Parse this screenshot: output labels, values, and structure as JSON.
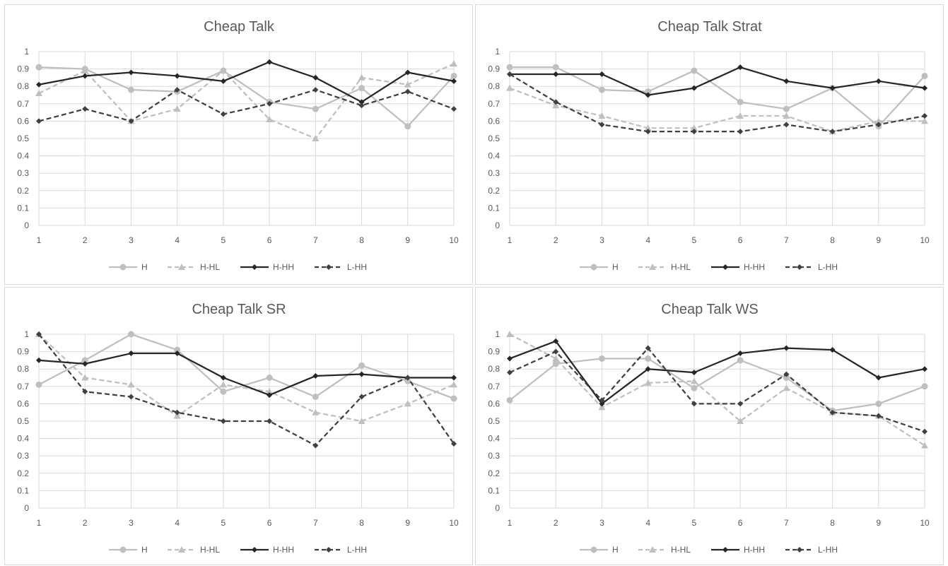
{
  "chart_data": [
    {
      "type": "line",
      "title": "Cheap Talk",
      "x": [
        1,
        2,
        3,
        4,
        5,
        6,
        7,
        8,
        9,
        10
      ],
      "ylim": [
        0,
        1
      ],
      "yticks": [
        "0",
        "0.1",
        "0.2",
        "0.3",
        "0.4",
        "0.5",
        "0.6",
        "0.7",
        "0.8",
        "0.9",
        "1"
      ],
      "grid": true,
      "legend_position": "bottom",
      "series": [
        {
          "name": "H",
          "values": [
            0.91,
            0.9,
            0.78,
            0.77,
            0.89,
            0.71,
            0.67,
            0.79,
            0.57,
            0.86
          ],
          "color": "#bfbfbf",
          "dash": "solid",
          "marker": "circle"
        },
        {
          "name": "H-HL",
          "values": [
            0.76,
            0.89,
            0.6,
            0.67,
            0.89,
            0.61,
            0.5,
            0.85,
            0.81,
            0.93
          ],
          "color": "#bfbfbf",
          "dash": "dashed",
          "marker": "triangle"
        },
        {
          "name": "H-HH",
          "values": [
            0.81,
            0.86,
            0.88,
            0.86,
            0.83,
            0.94,
            0.85,
            0.71,
            0.88,
            0.83
          ],
          "color": "#262626",
          "dash": "solid",
          "marker": "diamond"
        },
        {
          "name": "L-HH",
          "values": [
            0.6,
            0.67,
            0.6,
            0.78,
            0.64,
            0.7,
            0.78,
            0.69,
            0.77,
            0.67
          ],
          "color": "#404040",
          "dash": "dashed",
          "marker": "diamond"
        }
      ]
    },
    {
      "type": "line",
      "title": "Cheap Talk Strat",
      "x": [
        1,
        2,
        3,
        4,
        5,
        6,
        7,
        8,
        9,
        10
      ],
      "ylim": [
        0,
        1
      ],
      "yticks": [
        "0",
        "0.1",
        "0.2",
        "0.3",
        "0.4",
        "0.5",
        "0.6",
        "0.7",
        "0.8",
        "0.9",
        "1"
      ],
      "grid": true,
      "legend_position": "bottom",
      "series": [
        {
          "name": "H",
          "values": [
            0.91,
            0.91,
            0.78,
            0.77,
            0.89,
            0.71,
            0.67,
            0.79,
            0.57,
            0.86
          ],
          "color": "#bfbfbf",
          "dash": "solid",
          "marker": "circle"
        },
        {
          "name": "H-HL",
          "values": [
            0.79,
            0.69,
            0.63,
            0.56,
            0.56,
            0.63,
            0.63,
            0.54,
            0.6,
            0.6
          ],
          "color": "#bfbfbf",
          "dash": "dashed",
          "marker": "triangle"
        },
        {
          "name": "H-HH",
          "values": [
            0.87,
            0.87,
            0.87,
            0.75,
            0.79,
            0.91,
            0.83,
            0.79,
            0.83,
            0.79
          ],
          "color": "#262626",
          "dash": "solid",
          "marker": "diamond"
        },
        {
          "name": "L-HH",
          "values": [
            0.87,
            0.71,
            0.58,
            0.54,
            0.54,
            0.54,
            0.58,
            0.54,
            0.58,
            0.63
          ],
          "color": "#404040",
          "dash": "dashed",
          "marker": "diamond"
        }
      ]
    },
    {
      "type": "line",
      "title": "Cheap Talk SR",
      "x": [
        1,
        2,
        3,
        4,
        5,
        6,
        7,
        8,
        9,
        10
      ],
      "ylim": [
        0,
        1
      ],
      "yticks": [
        "0",
        "0.1",
        "0.2",
        "0.3",
        "0.4",
        "0.5",
        "0.6",
        "0.7",
        "0.8",
        "0.9",
        "1"
      ],
      "grid": true,
      "legend_position": "bottom",
      "series": [
        {
          "name": "H",
          "values": [
            0.71,
            0.85,
            1.0,
            0.91,
            0.67,
            0.75,
            0.64,
            0.82,
            0.73,
            0.63
          ],
          "color": "#bfbfbf",
          "dash": "solid",
          "marker": "circle"
        },
        {
          "name": "H-HL",
          "values": [
            1.0,
            0.75,
            0.71,
            0.53,
            0.71,
            0.67,
            0.55,
            0.5,
            0.6,
            0.71
          ],
          "color": "#bfbfbf",
          "dash": "dashed",
          "marker": "triangle"
        },
        {
          "name": "H-HH",
          "values": [
            0.85,
            0.83,
            0.89,
            0.89,
            0.75,
            0.65,
            0.76,
            0.77,
            0.75,
            0.75
          ],
          "color": "#262626",
          "dash": "solid",
          "marker": "diamond"
        },
        {
          "name": "L-HH",
          "values": [
            1.0,
            0.67,
            0.64,
            0.55,
            0.5,
            0.5,
            0.36,
            0.64,
            0.75,
            0.37
          ],
          "color": "#404040",
          "dash": "dashed",
          "marker": "diamond"
        }
      ]
    },
    {
      "type": "line",
      "title": "Cheap Talk WS",
      "x": [
        1,
        2,
        3,
        4,
        5,
        6,
        7,
        8,
        9,
        10
      ],
      "ylim": [
        0,
        1
      ],
      "yticks": [
        "0",
        "0.1",
        "0.2",
        "0.3",
        "0.4",
        "0.5",
        "0.6",
        "0.7",
        "0.8",
        "0.9",
        "1"
      ],
      "grid": true,
      "legend_position": "bottom",
      "series": [
        {
          "name": "H",
          "values": [
            0.62,
            0.83,
            0.86,
            0.86,
            0.69,
            0.85,
            0.75,
            0.56,
            0.6,
            0.7
          ],
          "color": "#bfbfbf",
          "dash": "solid",
          "marker": "circle"
        },
        {
          "name": "H-HL",
          "values": [
            1.0,
            0.86,
            0.58,
            0.72,
            0.73,
            0.5,
            0.69,
            0.55,
            0.53,
            0.36
          ],
          "color": "#bfbfbf",
          "dash": "dashed",
          "marker": "triangle"
        },
        {
          "name": "H-HH",
          "values": [
            0.86,
            0.96,
            0.6,
            0.8,
            0.78,
            0.89,
            0.92,
            0.91,
            0.75,
            0.8
          ],
          "color": "#262626",
          "dash": "solid",
          "marker": "diamond"
        },
        {
          "name": "L-HH",
          "values": [
            0.78,
            0.9,
            0.62,
            0.92,
            0.6,
            0.6,
            0.77,
            0.55,
            0.53,
            0.44
          ],
          "color": "#404040",
          "dash": "dashed",
          "marker": "diamond"
        }
      ]
    }
  ]
}
